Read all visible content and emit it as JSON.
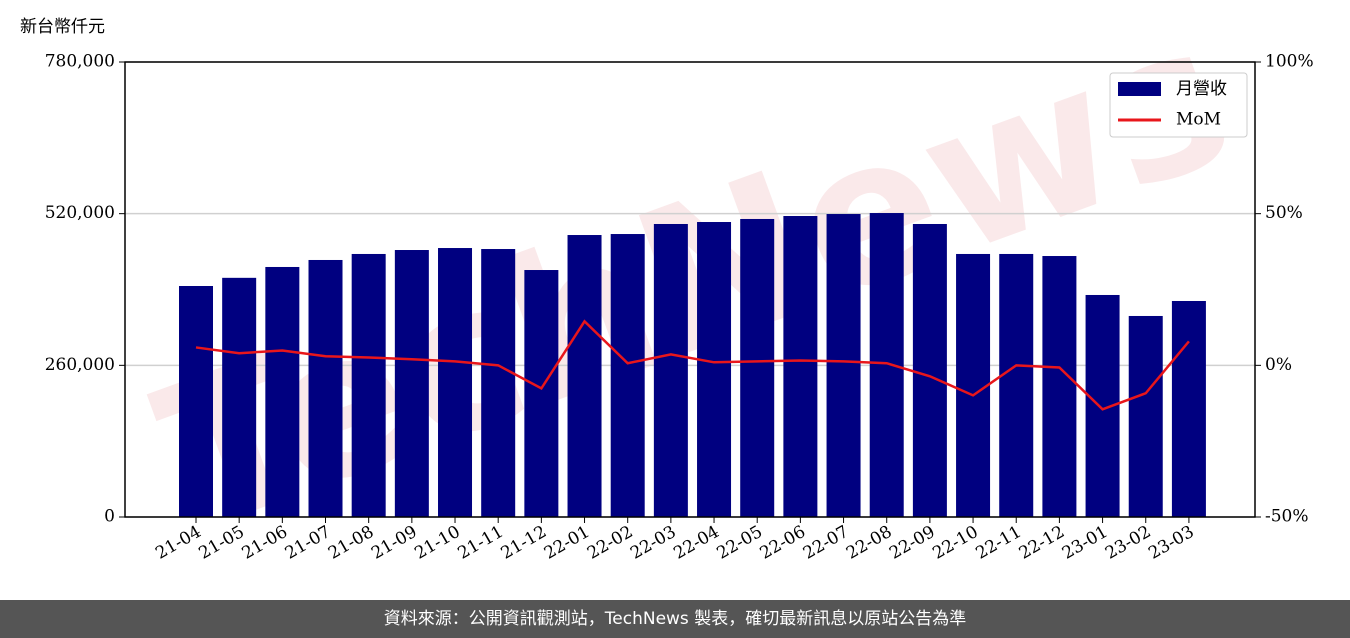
{
  "chart_data": {
    "type": "bar",
    "y_label": "新台幣仟元",
    "watermark": "TechNews",
    "categories": [
      "21-04",
      "21-05",
      "21-06",
      "21-07",
      "21-08",
      "21-09",
      "21-10",
      "21-11",
      "21-12",
      "22-01",
      "22-02",
      "22-03",
      "22-04",
      "22-05",
      "22-06",
      "22-07",
      "22-08",
      "22-09",
      "22-10",
      "22-11",
      "22-12",
      "23-01",
      "23-02",
      "23-03"
    ],
    "series": [
      {
        "name": "月營收",
        "type": "bar",
        "color": "#000080",
        "values": [
          396000,
          410000,
          428600,
          440600,
          450900,
          457700,
          461100,
          459400,
          423400,
          483400,
          485100,
          502300,
          505700,
          510900,
          516000,
          519400,
          521100,
          502300,
          450900,
          450900,
          447400,
          380600,
          344600,
          370300
        ]
      },
      {
        "name": "MoM",
        "type": "line",
        "axis": "y2",
        "color": "#e8161b",
        "values": [
          5.9,
          4.0,
          4.9,
          3.0,
          2.6,
          2.0,
          1.3,
          0,
          -7.6,
          14.5,
          0.7,
          3.6,
          1.0,
          1.3,
          1.6,
          1.3,
          0.7,
          -3.6,
          -9.9,
          0,
          -0.7,
          -14.5,
          -9.2,
          7.9
        ]
      }
    ],
    "ylim": [
      0,
      780000
    ],
    "yticks": [
      0,
      {
        "value": 260000,
        "label": "260,000"
      },
      {
        "value": 520000,
        "label": "520,000"
      },
      {
        "value": 780000,
        "label": "780,000"
      }
    ],
    "y2lim": [
      -50,
      100
    ],
    "y2ticks": [
      {
        "value": -50,
        "label": "-50%"
      },
      {
        "value": 0,
        "label": "0%"
      },
      {
        "value": 50,
        "label": "50%"
      },
      {
        "value": 100,
        "label": "100%"
      }
    ],
    "grid": true,
    "legend": "upper right"
  },
  "footer": "資料來源：公開資訊觀測站，TechNews 製表，確切最新訊息以原站公告為準"
}
